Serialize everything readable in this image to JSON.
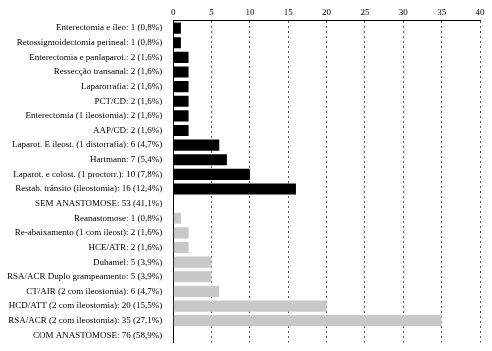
{
  "chart_data": {
    "type": "bar",
    "orientation": "horizontal",
    "categories": [
      "Enterectomia e íleo: 1 (0,8%)",
      "Retossigmoidectomia perineal: 1 (0,8%)",
      "Enterectomia e panlaparot.: 2 (1,6%)",
      "Ressecção transanal: 2 (1,6%)",
      "Laparorrafia: 2 (1,6%)",
      "PCT/CD: 2 (1,6%)",
      "Enterectomia (1 ileostomia): 2 (1,6%)",
      "AAP/CD: 2 (1,6%)",
      "Laparot. E ileost. (1 distorrafia): 6 (4,7%)",
      "Hartmann: 7 (5,4%)",
      "Laparot. e colost. (1 proctorr.): 10 (7,8%)",
      "Restab. trânsito (ileostomia): 16 (12,4%)",
      "SEM ANASTOMOSE: 53 (41,1%)",
      "Reanastomose: 1 (0,8%)",
      "Re-abaixamento (1 com ileost): 2 (1,6%)",
      "HCE/ATR: 2 (1,6%)",
      "Duhamel: 5 (3,9%)",
      "RSA/ACR Duplo grampeamento: 5 (3,9%)",
      "CT/AIR (2 com ileostomia): 6 (4,7%)",
      "HCD/ATT (2 com ileostomia): 20 (15,5%)",
      "RSA/ACR (2 com ileostomia): 35 (27,1%)",
      "COM ANASTOMOSE: 76 (58,9%)"
    ],
    "values": [
      1,
      1,
      2,
      2,
      2,
      2,
      2,
      2,
      6,
      7,
      10,
      16,
      null,
      1,
      2,
      2,
      5,
      5,
      6,
      20,
      35,
      null
    ],
    "colors": [
      "#000000",
      "#000000",
      "#000000",
      "#000000",
      "#000000",
      "#000000",
      "#000000",
      "#000000",
      "#000000",
      "#000000",
      "#000000",
      "#000000",
      "#000000",
      "#c8c8c8",
      "#c8c8c8",
      "#c8c8c8",
      "#c8c8c8",
      "#c8c8c8",
      "#c8c8c8",
      "#c8c8c8",
      "#c8c8c8",
      "#c8c8c8"
    ],
    "xlim": [
      0,
      40
    ],
    "xticks": [
      0,
      5,
      10,
      15,
      20,
      25,
      30,
      35,
      40
    ],
    "grid": true
  }
}
